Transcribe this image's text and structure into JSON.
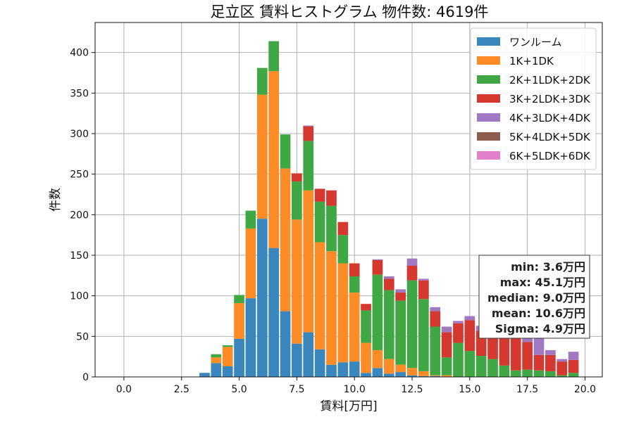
{
  "chart_data": {
    "type": "bar",
    "stacked": true,
    "title": "足立区 賃料ヒストグラム 物件数: 4619件",
    "xlabel": "賃料[万円]",
    "ylabel": "件数",
    "xlim": [
      -1.25,
      20.75
    ],
    "ylim": [
      0,
      437
    ],
    "x_ticks": [
      0.0,
      2.5,
      5.0,
      7.5,
      10.0,
      12.5,
      15.0,
      17.5,
      20.0
    ],
    "x_tick_labels": [
      "0.0",
      "2.5",
      "5.0",
      "7.5",
      "10.0",
      "12.5",
      "15.0",
      "17.5",
      "20.0"
    ],
    "y_ticks": [
      0,
      50,
      100,
      150,
      200,
      250,
      300,
      350,
      400
    ],
    "y_tick_labels": [
      "0",
      "50",
      "100",
      "150",
      "200",
      "250",
      "300",
      "350",
      "400"
    ],
    "grid": true,
    "legend_position": "top-right",
    "bin_width": 0.5,
    "x": [
      3.5,
      4.0,
      4.5,
      5.0,
      5.5,
      6.0,
      6.5,
      7.0,
      7.5,
      8.0,
      8.5,
      9.0,
      9.5,
      10.0,
      10.5,
      11.0,
      11.5,
      12.0,
      12.5,
      13.0,
      13.5,
      14.0,
      14.5,
      15.0,
      15.5,
      16.0,
      16.5,
      17.0,
      17.5,
      18.0,
      18.5,
      19.0,
      19.5
    ],
    "series": [
      {
        "name": "ワンルーム",
        "color": "#3a87be",
        "values": [
          5,
          17,
          13,
          47,
          97,
          195,
          159,
          81,
          41,
          55,
          34,
          15,
          18,
          19,
          5,
          11,
          4,
          6,
          2,
          1,
          1,
          0,
          0,
          0,
          0,
          0,
          0,
          0,
          0,
          0,
          0,
          0,
          0
        ]
      },
      {
        "name": "1K+1DK",
        "color": "#fd8c26",
        "values": [
          0,
          7,
          24,
          44,
          86,
          153,
          218,
          176,
          153,
          175,
          132,
          140,
          122,
          85,
          37,
          22,
          18,
          9,
          9,
          6,
          1,
          2,
          0,
          0,
          0,
          0,
          0,
          0,
          0,
          0,
          0,
          0,
          0
        ]
      },
      {
        "name": "2K+1LDK+2DK",
        "color": "#3fa845",
        "values": [
          0,
          4,
          2,
          10,
          22,
          33,
          37,
          42,
          47,
          61,
          50,
          56,
          35,
          20,
          40,
          93,
          85,
          79,
          108,
          89,
          60,
          22,
          42,
          32,
          26,
          22,
          14,
          8,
          9,
          8,
          7,
          2,
          5
        ]
      },
      {
        "name": "3K+2LDK+3DK",
        "color": "#d5382f",
        "values": [
          0,
          0,
          0,
          0,
          0,
          0,
          0,
          0,
          10,
          18,
          16,
          19,
          16,
          16,
          8,
          18,
          14,
          10,
          18,
          23,
          19,
          31,
          24,
          38,
          31,
          29,
          40,
          43,
          34,
          19,
          20,
          17,
          16
        ]
      },
      {
        "name": "4K+3LDK+4DK",
        "color": "#a079c2",
        "values": [
          0,
          0,
          0,
          0,
          0,
          0,
          0,
          0,
          0,
          1,
          0,
          0,
          0,
          0,
          0,
          1,
          3,
          4,
          9,
          2,
          5,
          7,
          3,
          5,
          6,
          6,
          7,
          10,
          7,
          22,
          6,
          3,
          10
        ]
      },
      {
        "name": "5K+4LDK+5DK",
        "color": "#8d5d50",
        "values": [
          0,
          0,
          0,
          0,
          0,
          0,
          0,
          0,
          0,
          0,
          0,
          0,
          0,
          0,
          0,
          0,
          0,
          0,
          0,
          0,
          0,
          0,
          0,
          0,
          0,
          1,
          1,
          1,
          0,
          1,
          0,
          0,
          0
        ]
      },
      {
        "name": "6K+5LDK+6DK",
        "color": "#e17fca",
        "values": [
          0,
          0,
          0,
          0,
          0,
          0,
          0,
          0,
          0,
          0,
          0,
          0,
          0,
          0,
          0,
          0,
          0,
          0,
          0,
          0,
          0,
          0,
          0,
          0,
          0,
          0,
          0,
          0,
          0,
          0,
          0,
          0,
          0
        ]
      }
    ],
    "stats_box": [
      "min: 3.6万円",
      "max: 45.1万円",
      "median: 9.0万円",
      "mean: 10.6万円",
      "Sigma: 4.9万円"
    ]
  }
}
